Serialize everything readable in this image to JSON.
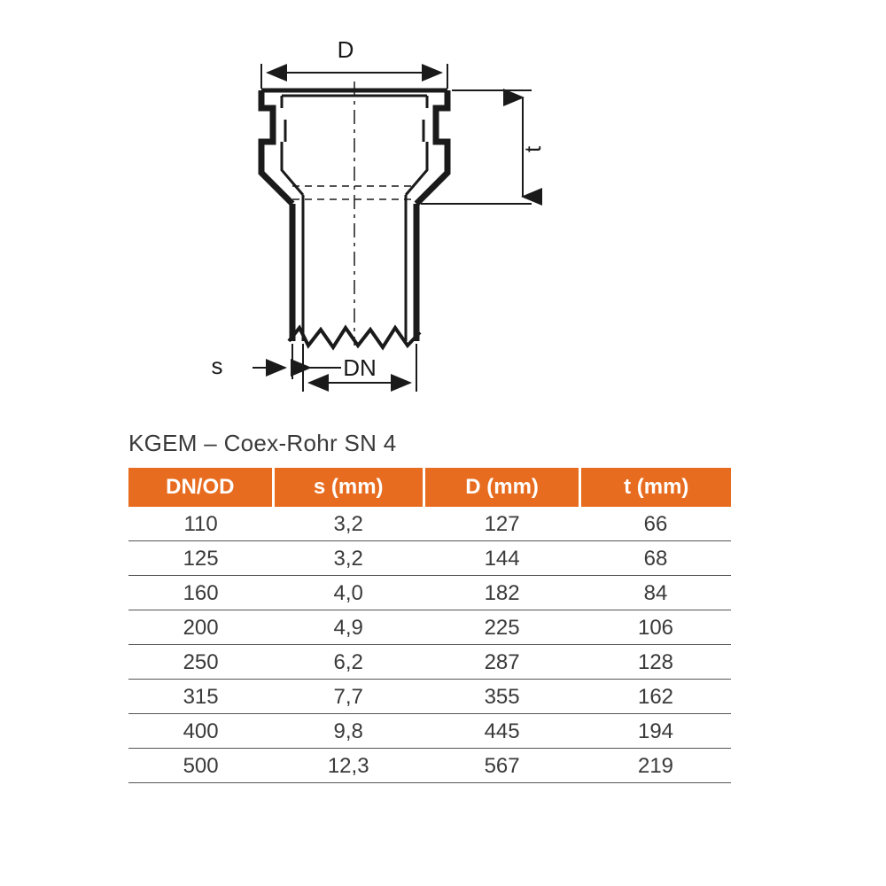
{
  "diagram": {
    "labels": {
      "D": "D",
      "t": "t",
      "s": "s",
      "DN": "DN"
    },
    "stroke_color": "#1a1a1a",
    "stroke_width_heavy": 7,
    "stroke_width_med": 4,
    "stroke_width_light": 2
  },
  "table": {
    "title": "KGEM – Coex-Rohr SN 4",
    "header_bg": "#e86c1f",
    "header_fg": "#ffffff",
    "cell_fg": "#3a3a3a",
    "border_color": "#555555",
    "font_size_header": 24,
    "font_size_cell": 24,
    "columns": [
      "DN/OD",
      "s (mm)",
      "D (mm)",
      "t (mm)"
    ],
    "rows": [
      [
        "110",
        "3,2",
        "127",
        "66"
      ],
      [
        "125",
        "3,2",
        "144",
        "68"
      ],
      [
        "160",
        "4,0",
        "182",
        "84"
      ],
      [
        "200",
        "4,9",
        "225",
        "106"
      ],
      [
        "250",
        "6,2",
        "287",
        "128"
      ],
      [
        "315",
        "7,7",
        "355",
        "162"
      ],
      [
        "400",
        "9,8",
        "445",
        "194"
      ],
      [
        "500",
        "12,3",
        "567",
        "219"
      ]
    ]
  }
}
